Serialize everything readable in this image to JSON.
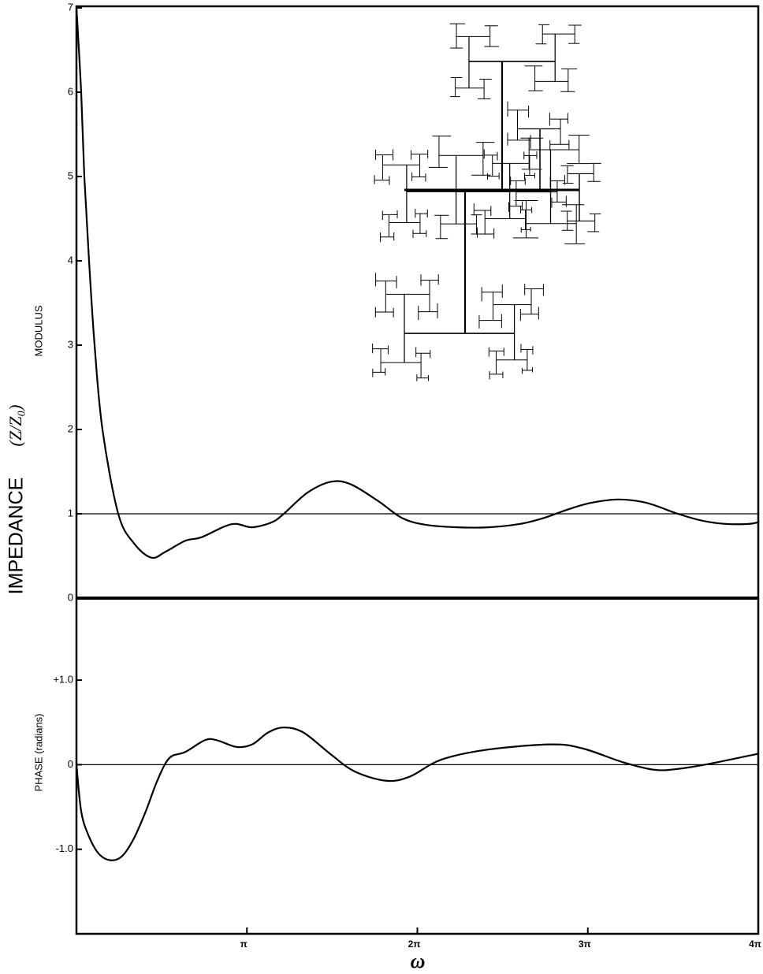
{
  "axis_label": "IMPEDANCE",
  "axis_unit": "(Z/Z₀)",
  "chart_data": [
    {
      "type": "line",
      "ylabel": "MODULUS",
      "xlim": [
        0,
        12.566
      ],
      "ylim": [
        0,
        7
      ],
      "yticks": [
        0,
        1,
        2,
        3,
        4,
        5,
        6,
        7
      ],
      "reference_line": 1,
      "x": [
        0,
        0.087,
        0.145,
        0.232,
        0.334,
        0.479,
        0.77,
        1.06,
        1.38,
        1.642,
        2.005,
        2.295,
        2.731,
        2.949,
        3.24,
        3.603,
        3.821,
        4.256,
        4.692,
        5.055,
        5.564,
        6.0,
        6.436,
        7.017,
        7.598,
        8.179,
        8.614,
        9.05,
        9.486,
        9.994,
        10.503,
        11.084,
        11.52,
        11.956,
        12.391,
        12.566
      ],
      "values": [
        7.0,
        6.0,
        5.0,
        4.0,
        3.0,
        2.0,
        1.0,
        0.65,
        0.48,
        0.55,
        0.68,
        0.72,
        0.85,
        0.88,
        0.84,
        0.9,
        1.0,
        1.25,
        1.38,
        1.35,
        1.15,
        0.95,
        0.87,
        0.84,
        0.84,
        0.88,
        0.95,
        1.05,
        1.13,
        1.17,
        1.13,
        1.0,
        0.92,
        0.88,
        0.88,
        0.9
      ],
      "color": "#000000"
    },
    {
      "type": "line",
      "ylabel": "PHASE  (radians)",
      "xlabel": "ω",
      "xlim": [
        0,
        12.566
      ],
      "xticks": [
        {
          "value": 3.1416,
          "label": "π"
        },
        {
          "value": 6.2832,
          "label": "2π"
        },
        {
          "value": 9.4248,
          "label": "3π"
        },
        {
          "value": 12.566,
          "label": "4π"
        }
      ],
      "ylim": [
        -2,
        1.97
      ],
      "yticks": [
        {
          "value": -1,
          "label": "-1.0"
        },
        0,
        {
          "value": 1,
          "label": "+1.0"
        }
      ],
      "reference_line": 0,
      "x": [
        0,
        0.087,
        0.218,
        0.407,
        0.625,
        0.843,
        1.06,
        1.278,
        1.496,
        1.714,
        2.005,
        2.368,
        2.586,
        2.949,
        3.24,
        3.53,
        3.821,
        4.184,
        4.692,
        5.128,
        5.709,
        6.145,
        6.726,
        7.598,
        8.76,
        9.341,
        10.067,
        10.648,
        11.084,
        11.665,
        12.566
      ],
      "values": [
        0,
        -0.55,
        -0.83,
        -1.05,
        -1.13,
        -1.08,
        -0.87,
        -0.55,
        -0.18,
        0.08,
        0.15,
        0.29,
        0.29,
        0.21,
        0.24,
        0.38,
        0.44,
        0.38,
        0.12,
        -0.08,
        -0.19,
        -0.14,
        0.06,
        0.18,
        0.24,
        0.19,
        0.03,
        -0.06,
        -0.05,
        0.01,
        0.13
      ],
      "color": "#000000"
    }
  ]
}
